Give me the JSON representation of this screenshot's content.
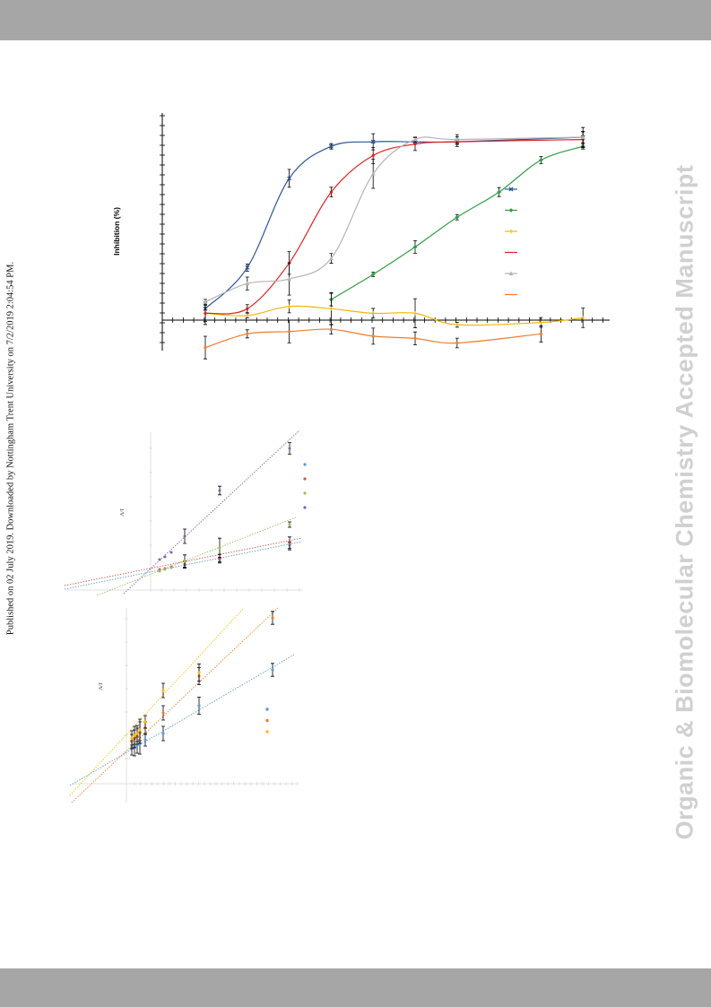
{
  "header_band": "",
  "footer_band": "",
  "side_note": "Published on 02 July 2019. Downloaded by Nottingham Trent University on 7/2/2019 2:04:54 PM.",
  "watermark": "Organic & Biomolecular Chemistry Accepted Manuscript",
  "chart_data": [
    {
      "type": "line",
      "ylabel": "Inhibition (%)",
      "x": [
        1,
        2,
        3,
        4,
        5,
        6,
        7,
        8,
        9,
        10
      ],
      "series": [
        {
          "color": "#2e5597",
          "marker": "x",
          "values": [
            5,
            23,
            62,
            76,
            78,
            78,
            78,
            null,
            null,
            80
          ]
        },
        {
          "color": "#2e9e44",
          "marker": "diamond",
          "values": [
            null,
            null,
            null,
            9,
            20,
            32,
            45,
            56,
            70,
            76
          ]
        },
        {
          "color": "#f2b705",
          "marker": "plus",
          "values": [
            3,
            2,
            6,
            5,
            3,
            3,
            -2,
            null,
            -1,
            1
          ]
        },
        {
          "color": "#e01f1f",
          "marker": "none",
          "values": [
            3,
            5,
            25,
            56,
            72,
            77,
            78,
            null,
            null,
            79
          ]
        },
        {
          "color": "#b3b3b3",
          "marker": "triangle",
          "values": [
            8,
            16,
            18,
            27,
            64,
            79,
            79,
            null,
            null,
            80
          ]
        },
        {
          "color": "#ed7d31",
          "marker": "none",
          "values": [
            -12,
            -6,
            -5,
            -4,
            -7,
            -8,
            -10,
            null,
            -6,
            null
          ]
        }
      ]
    },
    {
      "type": "scatter",
      "ylabel": "1/V",
      "series": [
        {
          "color": "#5b9bd5"
        },
        {
          "color": "#d9534f"
        },
        {
          "color": "#9bbb59"
        },
        {
          "color": "#8064a2"
        }
      ]
    },
    {
      "type": "scatter",
      "ylabel": "1/V",
      "series": [
        {
          "color": "#5b9bd5"
        },
        {
          "color": "#ed7d31"
        },
        {
          "color": "#ffc000"
        }
      ]
    }
  ]
}
